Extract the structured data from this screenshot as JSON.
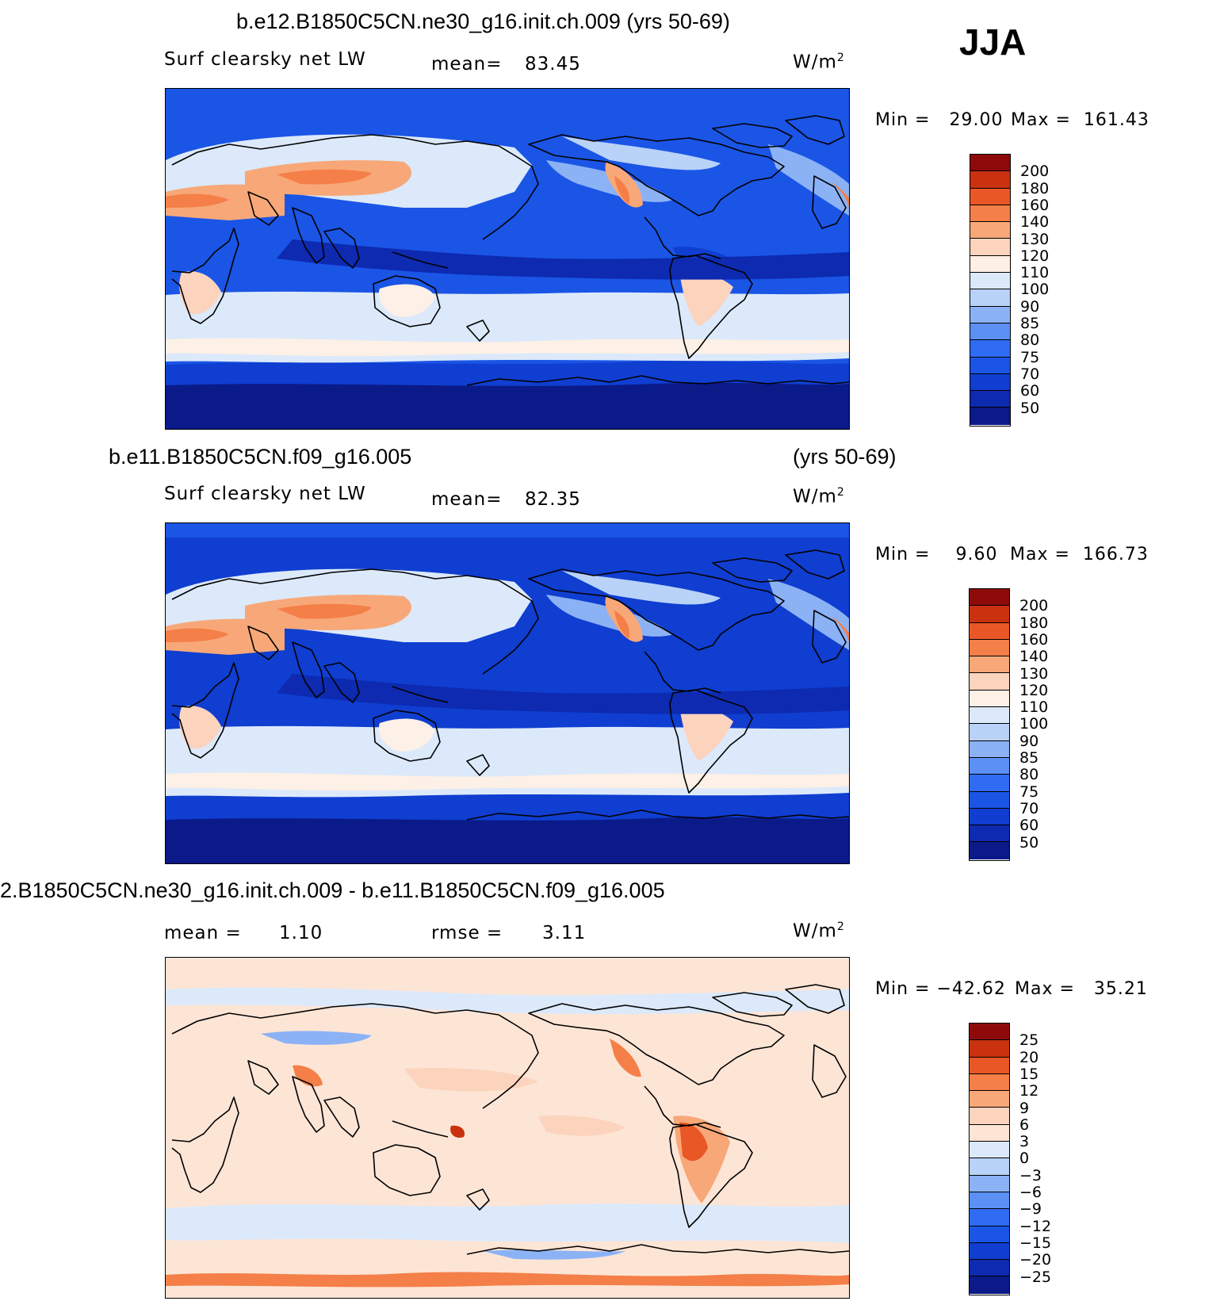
{
  "season": "JJA",
  "colors": {
    "absolute": [
      "#0a1a88",
      "#0d2ab0",
      "#0f3ed0",
      "#1a55e6",
      "#2f6cf3",
      "#5c90f5",
      "#8cb2f6",
      "#b8d2f8",
      "#dce9fa",
      "#fdf0e6",
      "#fcd3bd",
      "#f8a878",
      "#f47f48",
      "#ea5726",
      "#c9310f",
      "#8e0a0a"
    ],
    "difference": [
      "#0a1a88",
      "#0d2ab0",
      "#0f3ed0",
      "#1a55e6",
      "#2f6cf3",
      "#5c90f5",
      "#8cb2f6",
      "#b8d2f8",
      "#dce9fa",
      "#fde5d6",
      "#fcd3bd",
      "#f8a878",
      "#f47f48",
      "#ea5726",
      "#c9310f",
      "#8e0a0a"
    ]
  },
  "panels": [
    {
      "title": "b.e12.B1850C5CN.ne30_g16.init.ch.009 (yrs 50-69)",
      "variable": "Surf clearsky net LW",
      "mean_label": "mean=",
      "mean_value": "83.45",
      "units_base": "W/m",
      "units_exp": "2",
      "min_label": "Min",
      "min_value": "29.00",
      "max_label": "Max",
      "max_value": "161.43",
      "colorbar_labels": [
        "200",
        "180",
        "160",
        "140",
        "130",
        "120",
        "110",
        "100",
        "90",
        "85",
        "80",
        "75",
        "70",
        "60",
        "50"
      ]
    },
    {
      "title_left": "b.e11.B1850C5CN.f09_g16.005",
      "title_right": "(yrs 50-69)",
      "variable": "Surf clearsky net LW",
      "mean_label": "mean=",
      "mean_value": "82.35",
      "units_base": "W/m",
      "units_exp": "2",
      "min_label": "Min",
      "min_value": "9.60",
      "max_label": "Max",
      "max_value": "166.73",
      "colorbar_labels": [
        "200",
        "180",
        "160",
        "140",
        "130",
        "120",
        "110",
        "100",
        "90",
        "85",
        "80",
        "75",
        "70",
        "60",
        "50"
      ]
    },
    {
      "title": "2.B1850C5CN.ne30_g16.init.ch.009 - b.e11.B1850C5CN.f09_g16.005",
      "mean_label": "mean =",
      "mean_value": "1.10",
      "rmse_label": "rmse =",
      "rmse_value": "3.11",
      "units_base": "W/m",
      "units_exp": "2",
      "min_label": "Min",
      "min_value": "−42.62",
      "max_label": "Max",
      "max_value": "35.21",
      "colorbar_labels": [
        "25",
        "20",
        "15",
        "12",
        "9",
        "6",
        "3",
        "0",
        "−3",
        "−6",
        "−9",
        "−12",
        "−15",
        "−20",
        "−25"
      ]
    }
  ]
}
